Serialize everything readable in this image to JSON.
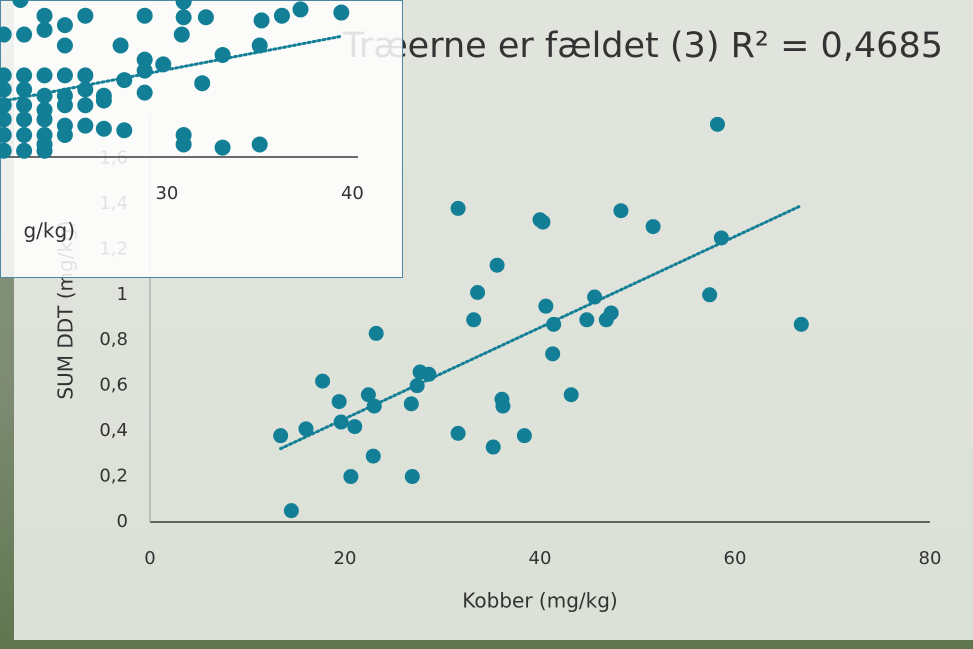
{
  "chart_data": [
    {
      "type": "scatter",
      "title": "Træerne er fældet (3) R² = 0,4685",
      "x_label": "Kobber (mg/kg)",
      "y_label": "SUM DDT (mg/kg)",
      "color": "#137f96",
      "x": [
        13.4,
        14.5,
        16.0,
        17.7,
        19.4,
        19.6,
        20.6,
        21.0,
        22.4,
        22.9,
        23.0,
        23.2,
        26.8,
        26.9,
        27.4,
        27.7,
        28.6,
        31.6,
        31.6,
        33.2,
        33.6,
        35.2,
        35.6,
        36.1,
        36.2,
        38.4,
        40.0,
        40.3,
        40.6,
        41.3,
        41.4,
        43.2,
        44.8,
        45.6,
        46.8,
        47.3,
        48.3,
        51.6,
        57.4,
        58.2,
        58.6,
        66.8
      ],
      "values": [
        0.38,
        0.05,
        0.41,
        0.62,
        0.53,
        0.44,
        0.2,
        0.42,
        0.56,
        0.29,
        0.51,
        0.83,
        0.52,
        0.2,
        0.6,
        0.66,
        0.65,
        1.38,
        0.39,
        0.89,
        1.01,
        0.33,
        1.13,
        0.54,
        0.51,
        0.38,
        1.33,
        1.32,
        0.95,
        0.74,
        0.87,
        0.56,
        0.89,
        0.99,
        0.89,
        0.92,
        1.37,
        1.3,
        1.0,
        1.75,
        1.25,
        0.87
      ],
      "xlim": [
        0,
        80
      ],
      "xticks": [
        0,
        20,
        40,
        60,
        80
      ],
      "ylim": [
        0,
        1.8
      ],
      "yticks": [
        0,
        {
          "value": 0.2,
          "label": "0,2"
        },
        {
          "value": 0.4,
          "label": "0,4"
        },
        {
          "value": 0.6,
          "label": "0,6"
        },
        {
          "value": 0.8,
          "label": "0,8"
        },
        1,
        {
          "value": 1.2,
          "label": "1,2"
        },
        {
          "value": 1.4,
          "label": "1,4"
        },
        {
          "value": 1.6,
          "label": "1,6"
        }
      ],
      "trendline": true
    },
    {
      "type": "scatter",
      "x_label": "g/kg)",
      "color": "#137f96",
      "x": [
        22.1,
        23.4,
        25.6,
        28.8,
        30.9,
        32.1,
        35.1,
        36.2,
        37.2,
        39.4,
        30.8,
        30.9,
        23.4,
        24.5,
        21.2,
        22.3,
        24.5,
        27.5,
        33.0,
        35.0,
        28.8,
        29.8,
        21.2,
        22.3,
        23.4,
        24.5,
        25.6,
        27.7,
        31.9,
        28.8,
        21.2,
        22.3,
        23.4,
        24.5,
        25.6,
        26.6,
        28.8,
        21.2,
        22.3,
        23.4,
        24.5,
        25.6,
        26.6,
        21.2,
        22.3,
        23.4,
        24.5,
        25.6,
        26.6,
        27.7,
        21.2,
        22.3,
        23.4,
        24.5,
        21.2,
        22.3,
        23.4,
        30.9,
        30.9,
        33.0,
        35.0,
        23.4
      ],
      "values": [
        1.0,
        0.9,
        0.9,
        0.9,
        0.99,
        0.89,
        0.87,
        0.9,
        0.94,
        0.92,
        0.78,
        0.89,
        0.81,
        0.84,
        0.78,
        0.78,
        0.71,
        0.71,
        0.65,
        0.71,
        0.62,
        0.59,
        0.52,
        0.52,
        0.52,
        0.52,
        0.52,
        0.49,
        0.47,
        0.55,
        0.43,
        0.43,
        0.39,
        0.39,
        0.43,
        0.39,
        0.41,
        0.33,
        0.33,
        0.3,
        0.33,
        0.33,
        0.36,
        0.24,
        0.24,
        0.24,
        0.2,
        0.2,
        0.18,
        0.17,
        0.14,
        0.14,
        0.14,
        0.14,
        0.04,
        0.04,
        0.04,
        0.14,
        0.08,
        0.06,
        0.08,
        0.08
      ],
      "xlim": [
        21,
        40.3
      ],
      "xticks": [
        30,
        40
      ],
      "ylim": [
        0,
        1
      ],
      "trendline": true
    }
  ]
}
